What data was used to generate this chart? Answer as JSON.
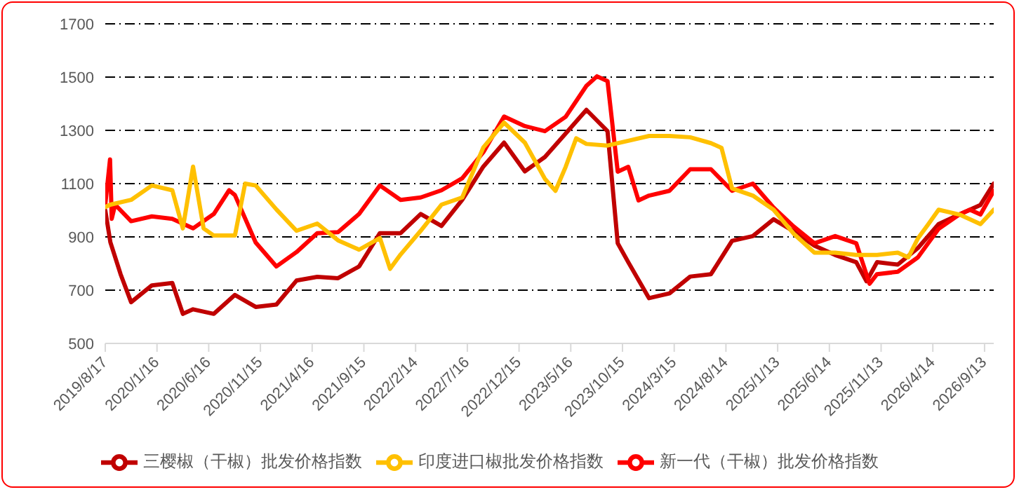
{
  "chart_data": {
    "type": "line",
    "xlim": [
      "2019-08-17",
      "2026-10-10"
    ],
    "xticks": [
      {
        "value": "2019-08-17",
        "label": "2019/8/17"
      },
      {
        "value": "2020-01-16",
        "label": "2020/1/16"
      },
      {
        "value": "2020-06-16",
        "label": "2020/6/16"
      },
      {
        "value": "2020-11-15",
        "label": "2020/11/15"
      },
      {
        "value": "2021-04-16",
        "label": "2021/4/16"
      },
      {
        "value": "2021-09-15",
        "label": "2021/9/15"
      },
      {
        "value": "2022-02-14",
        "label": "2022/2/14"
      },
      {
        "value": "2022-07-16",
        "label": "2022/7/16"
      },
      {
        "value": "2022-12-15",
        "label": "2022/12/15"
      },
      {
        "value": "2023-05-16",
        "label": "2023/5/16"
      },
      {
        "value": "2023-10-15",
        "label": "2023/10/15"
      },
      {
        "value": "2024-03-15",
        "label": "2024/3/15"
      },
      {
        "value": "2024-08-14",
        "label": "2024/8/14"
      },
      {
        "value": "2025-01-13",
        "label": "2025/1/13"
      },
      {
        "value": "2025-06-14",
        "label": "2025/6/14"
      },
      {
        "value": "2025-11-13",
        "label": "2025/11/13"
      },
      {
        "value": "2026-04-14",
        "label": "2026/4/14"
      },
      {
        "value": "2026-09-13",
        "label": "2026/9/13"
      }
    ],
    "ylim": [
      500,
      1700
    ],
    "yticks": [
      500,
      700,
      900,
      1100,
      1300,
      1500,
      1700
    ],
    "grid": "y",
    "legend": "bottom",
    "marker": "none",
    "line_style": "solid",
    "series": [
      {
        "name": "三樱椒（干椒）批发价格指数",
        "color": "#c00000",
        "x": [
          "2019-08-17",
          "2019-09-01",
          "2019-10-01",
          "2019-11-01",
          "2020-01-01",
          "2020-03-01",
          "2020-04-01",
          "2020-05-01",
          "2020-07-01",
          "2020-09-01",
          "2020-11-01",
          "2021-01-01",
          "2021-03-01",
          "2021-05-01",
          "2021-07-01",
          "2021-09-01",
          "2021-11-01",
          "2022-01-01",
          "2022-03-01",
          "2022-05-01",
          "2022-07-01",
          "2022-09-01",
          "2022-11-01",
          "2023-01-01",
          "2023-03-01",
          "2023-05-01",
          "2023-07-01",
          "2023-09-01",
          "2023-10-01",
          "2023-11-01",
          "2024-01-01",
          "2024-03-01",
          "2024-05-01",
          "2024-07-01",
          "2024-09-01",
          "2024-11-01",
          "2025-01-01",
          "2025-03-01",
          "2025-05-01",
          "2025-07-01",
          "2025-09-01",
          "2025-10-01",
          "2025-11-01",
          "2026-01-01",
          "2026-03-01",
          "2026-05-01",
          "2026-07-01",
          "2026-08-01",
          "2026-09-01",
          "2026-10-10"
        ],
        "values": [
          1000,
          880,
          760,
          655,
          718,
          727,
          611,
          628,
          611,
          682,
          637,
          646,
          736,
          750,
          745,
          789,
          914,
          914,
          986,
          941,
          1039,
          1164,
          1254,
          1146,
          1200,
          1288,
          1377,
          1297,
          876,
          805,
          670,
          688,
          751,
          760,
          885,
          903,
          966,
          921,
          867,
          832,
          805,
          733,
          805,
          796,
          858,
          948,
          984,
          1002,
          1020,
          1100
        ]
      },
      {
        "name": "新一代（干椒）批发价格指数",
        "color": "#ff0000",
        "x": [
          "2019-08-17",
          "2019-08-31",
          "2019-09-05",
          "2019-09-15",
          "2019-11-01",
          "2020-01-01",
          "2020-03-01",
          "2020-05-01",
          "2020-07-01",
          "2020-08-15",
          "2020-09-01",
          "2020-11-01",
          "2021-01-01",
          "2021-03-01",
          "2021-05-01",
          "2021-07-01",
          "2021-09-01",
          "2021-11-01",
          "2022-01-01",
          "2022-03-01",
          "2022-05-01",
          "2022-07-01",
          "2022-09-01",
          "2022-11-01",
          "2023-01-01",
          "2023-03-01",
          "2023-05-01",
          "2023-07-01",
          "2023-08-01",
          "2023-09-01",
          "2023-10-01",
          "2023-11-01",
          "2023-12-01",
          "2024-01-01",
          "2024-03-01",
          "2024-05-01",
          "2024-07-01",
          "2024-09-01",
          "2024-11-01",
          "2025-01-01",
          "2025-03-01",
          "2025-05-01",
          "2025-07-01",
          "2025-09-01",
          "2025-10-10",
          "2025-11-01",
          "2026-01-01",
          "2026-03-01",
          "2026-05-01",
          "2026-07-01",
          "2026-08-01",
          "2026-09-01",
          "2026-10-10"
        ],
        "values": [
          1021,
          1191,
          968,
          1021,
          959,
          977,
          968,
          932,
          986,
          1075,
          1057,
          879,
          789,
          843,
          914,
          918,
          986,
          1093,
          1039,
          1048,
          1075,
          1120,
          1218,
          1352,
          1316,
          1297,
          1351,
          1467,
          1503,
          1485,
          1145,
          1163,
          1037,
          1055,
          1073,
          1154,
          1154,
          1073,
          1100,
          1010,
          939,
          876,
          903,
          876,
          724,
          760,
          769,
          823,
          930,
          984,
          1002,
          984,
          1073
        ]
      },
      {
        "name": "印度进口椒批发价格指数",
        "color": "#ffc000",
        "x": [
          "2019-08-17",
          "2019-09-01",
          "2019-11-01",
          "2020-01-01",
          "2020-03-01",
          "2020-04-01",
          "2020-05-01",
          "2020-06-01",
          "2020-07-01",
          "2020-09-01",
          "2020-10-01",
          "2020-11-01",
          "2021-01-01",
          "2021-03-01",
          "2021-05-01",
          "2021-07-01",
          "2021-09-01",
          "2021-11-01",
          "2021-12-01",
          "2022-01-01",
          "2022-03-01",
          "2022-05-01",
          "2022-07-01",
          "2022-09-01",
          "2022-11-01",
          "2023-01-01",
          "2023-03-01",
          "2023-04-01",
          "2023-05-01",
          "2023-06-01",
          "2023-07-01",
          "2023-09-01",
          "2023-11-01",
          "2024-01-01",
          "2024-03-01",
          "2024-05-01",
          "2024-07-01",
          "2024-08-01",
          "2024-09-01",
          "2024-11-01",
          "2025-01-01",
          "2025-03-01",
          "2025-05-01",
          "2025-07-01",
          "2025-09-01",
          "2025-11-01",
          "2026-01-01",
          "2026-02-01",
          "2026-03-01",
          "2026-04-01",
          "2026-05-01",
          "2026-07-01",
          "2026-09-01",
          "2026-10-10"
        ],
        "values": [
          1012,
          1021,
          1039,
          1093,
          1075,
          932,
          1164,
          932,
          905,
          905,
          1100,
          1093,
          1003,
          923,
          950,
          887,
          852,
          896,
          780,
          834,
          923,
          1021,
          1048,
          1236,
          1329,
          1254,
          1118,
          1073,
          1163,
          1270,
          1249,
          1243,
          1261,
          1279,
          1279,
          1274,
          1252,
          1234,
          1082,
          1055,
          1002,
          912,
          841,
          841,
          832,
          832,
          841,
          823,
          894,
          948,
          1002,
          984,
          948,
          1002
        ]
      }
    ]
  }
}
